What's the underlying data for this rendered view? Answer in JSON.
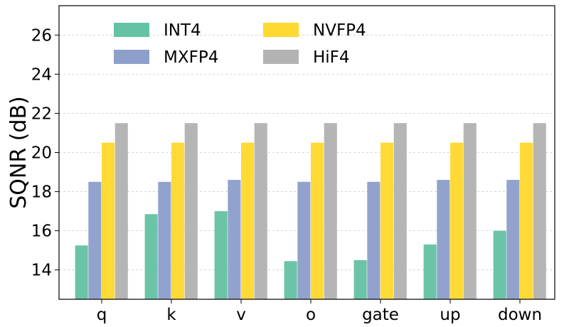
{
  "chart_data": {
    "type": "bar",
    "ylabel": "SQNR (dB)",
    "xlabel": "",
    "ylim": [
      12.5,
      27.5
    ],
    "yticks": [
      14,
      16,
      18,
      20,
      22,
      24,
      26
    ],
    "grid": true,
    "legend_placement": "top",
    "categories": [
      "q",
      "k",
      "v",
      "o",
      "gate",
      "up",
      "down"
    ],
    "series": [
      {
        "name": "INT4",
        "color": "#66c2a5",
        "values": [
          15.25,
          16.85,
          17.0,
          14.45,
          14.5,
          15.3,
          16.0
        ]
      },
      {
        "name": "MXFP4",
        "color": "#8da0cb",
        "values": [
          18.5,
          18.5,
          18.6,
          18.5,
          18.5,
          18.6,
          18.6
        ]
      },
      {
        "name": "NVFP4",
        "color": "#ffd92f",
        "values": [
          20.5,
          20.5,
          20.5,
          20.5,
          20.5,
          20.5,
          20.5
        ]
      },
      {
        "name": "HiF4",
        "color": "#b3b3b3",
        "values": [
          21.5,
          21.5,
          21.5,
          21.5,
          21.5,
          21.5,
          21.5
        ]
      }
    ]
  }
}
